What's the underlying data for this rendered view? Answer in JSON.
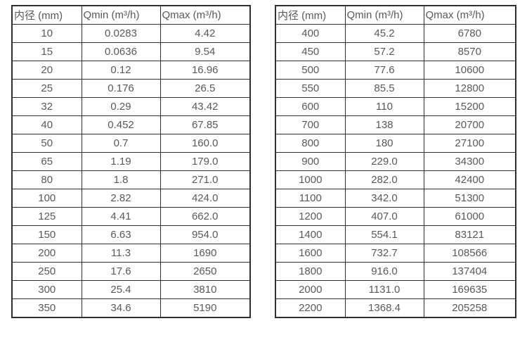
{
  "tables": [
    {
      "headers": [
        "内径 (mm)",
        "Qmin (m³/h)",
        "Qmax (m³/h)"
      ],
      "rows": [
        [
          "10",
          "0.0283",
          "4.42"
        ],
        [
          "15",
          "0.0636",
          "9.54"
        ],
        [
          "20",
          "0.12",
          "16.96"
        ],
        [
          "25",
          "0.176",
          "26.5"
        ],
        [
          "32",
          "0.29",
          "43.42"
        ],
        [
          "40",
          "0.452",
          "67.85"
        ],
        [
          "50",
          "0.7",
          "160.0"
        ],
        [
          "65",
          "1.19",
          "179.0"
        ],
        [
          "80",
          "1.8",
          "271.0"
        ],
        [
          "100",
          "2.82",
          "424.0"
        ],
        [
          "125",
          "4.41",
          "662.0"
        ],
        [
          "150",
          "6.63",
          "954.0"
        ],
        [
          "200",
          "11.3",
          "1690"
        ],
        [
          "250",
          "17.6",
          "2650"
        ],
        [
          "300",
          "25.4",
          "3810"
        ],
        [
          "350",
          "34.6",
          "5190"
        ]
      ]
    },
    {
      "headers": [
        "内径 (mm)",
        "Qmin (m³/h)",
        "Qmax (m³/h)"
      ],
      "rows": [
        [
          "400",
          "45.2",
          "6780"
        ],
        [
          "450",
          "57.2",
          "8570"
        ],
        [
          "500",
          "77.6",
          "10600"
        ],
        [
          "550",
          "85.5",
          "12800"
        ],
        [
          "600",
          "110",
          "15200"
        ],
        [
          "700",
          "138",
          "20700"
        ],
        [
          "800",
          "180",
          "27100"
        ],
        [
          "900",
          "229.0",
          "34300"
        ],
        [
          "1000",
          "282.0",
          "42400"
        ],
        [
          "1100",
          "342.0",
          "51300"
        ],
        [
          "1200",
          "407.0",
          "61000"
        ],
        [
          "1400",
          "554.1",
          "83121"
        ],
        [
          "1600",
          "732.7",
          "108566"
        ],
        [
          "1800",
          "916.0",
          "137404"
        ],
        [
          "2000",
          "1131.0",
          "169635"
        ],
        [
          "2200",
          "1368.4",
          "205258"
        ]
      ]
    }
  ],
  "colors": {
    "border": "#2e2e2e",
    "text": "#595959",
    "background": "#ffffff"
  }
}
